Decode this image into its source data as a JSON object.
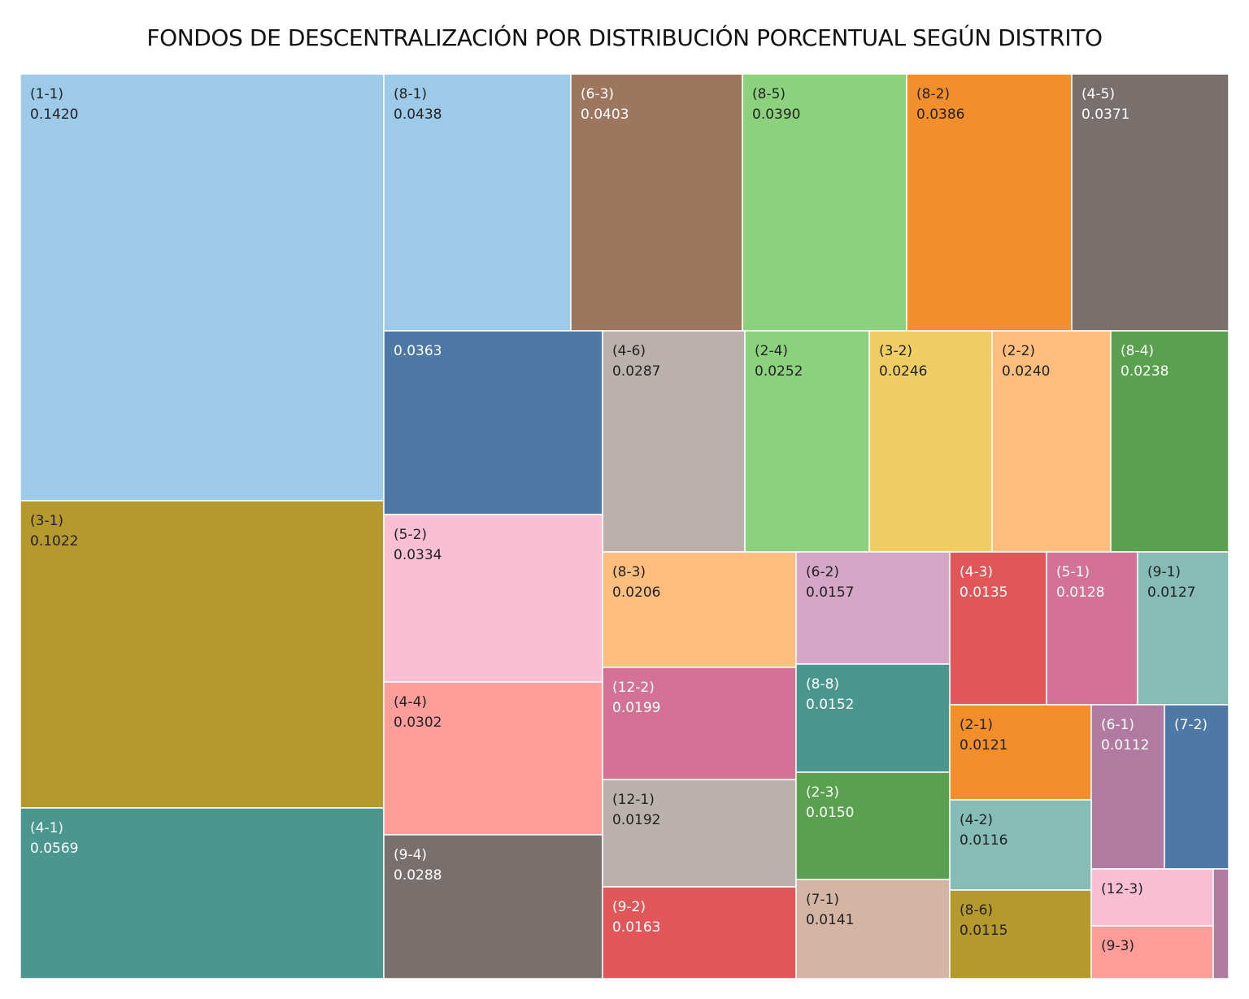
{
  "chart_data": {
    "type": "treemap",
    "title": "FONDOS DE DESCENTRALIZACIÓN POR DISTRIBUCIÓN PORCENTUAL SEGÚN DISTRITO",
    "cells": [
      {
        "name": "(1-1)",
        "value": "0.1420",
        "color": "#9ECAE9",
        "text_color": "#222222"
      },
      {
        "name": "(3-1)",
        "value": "0.1022",
        "color": "#B5992D",
        "text_color": "#222222"
      },
      {
        "name": "(4-1)",
        "value": "0.0569",
        "color": "#4A9790",
        "text_color": "#FFFFFF"
      },
      {
        "name": "(8-1)",
        "value": "0.0438",
        "color": "#9ECAE9",
        "text_color": "#222222"
      },
      {
        "name": "(6-3)",
        "value": "0.0403",
        "color": "#9D7660",
        "text_color": "#FFFFFF"
      },
      {
        "name": "(8-5)",
        "value": "0.0390",
        "color": "#8CD17D",
        "text_color": "#222222"
      },
      {
        "name": "(8-2)",
        "value": "0.0386",
        "color": "#F28E2B",
        "text_color": "#222222"
      },
      {
        "name": "(4-5)",
        "value": "0.0371",
        "color": "#79706E",
        "text_color": "#FFFFFF"
      },
      {
        "name": "",
        "value": "0.0363",
        "color": "#4E79A7",
        "text_color": "#FFFFFF"
      },
      {
        "name": "(4-6)",
        "value": "0.0287",
        "color": "#BAB0AC",
        "text_color": "#222222"
      },
      {
        "name": "(2-4)",
        "value": "0.0252",
        "color": "#8CD17D",
        "text_color": "#222222"
      },
      {
        "name": "(3-2)",
        "value": "0.0246",
        "color": "#F1CE63",
        "text_color": "#222222"
      },
      {
        "name": "(2-2)",
        "value": "0.0240",
        "color": "#FFBE7D",
        "text_color": "#222222"
      },
      {
        "name": "(8-4)",
        "value": "0.0238",
        "color": "#59A14F",
        "text_color": "#FFFFFF"
      },
      {
        "name": "(5-2)",
        "value": "0.0334",
        "color": "#FABFD2",
        "text_color": "#222222"
      },
      {
        "name": "(4-4)",
        "value": "0.0302",
        "color": "#FF9D9A",
        "text_color": "#222222"
      },
      {
        "name": "(9-4)",
        "value": "0.0288",
        "color": "#79706E",
        "text_color": "#FFFFFF"
      },
      {
        "name": "(8-3)",
        "value": "0.0206",
        "color": "#FFBE7D",
        "text_color": "#222222"
      },
      {
        "name": "(6-2)",
        "value": "0.0157",
        "color": "#D4A6C8",
        "text_color": "#222222"
      },
      {
        "name": "(4-3)",
        "value": "0.0135",
        "color": "#E15759",
        "text_color": "#FFFFFF"
      },
      {
        "name": "(5-1)",
        "value": "0.0128",
        "color": "#D37295",
        "text_color": "#FFFFFF"
      },
      {
        "name": "(9-1)",
        "value": "0.0127",
        "color": "#86BCB6",
        "text_color": "#222222"
      },
      {
        "name": "(12-2)",
        "value": "0.0199",
        "color": "#D37295",
        "text_color": "#FFFFFF"
      },
      {
        "name": "(8-8)",
        "value": "0.0152",
        "color": "#4A9790",
        "text_color": "#FFFFFF"
      },
      {
        "name": "(2-1)",
        "value": "0.0121",
        "color": "#F28E2B",
        "text_color": "#222222"
      },
      {
        "name": "(6-1)",
        "value": "0.0112",
        "color": "#B07AA1",
        "text_color": "#FFFFFF"
      },
      {
        "name": "(7-2)",
        "value": "",
        "color": "#4E79A7",
        "text_color": "#FFFFFF"
      },
      {
        "name": "(12-1)",
        "value": "0.0192",
        "color": "#BAB0AC",
        "text_color": "#222222"
      },
      {
        "name": "(2-3)",
        "value": "0.0150",
        "color": "#59A14F",
        "text_color": "#FFFFFF"
      },
      {
        "name": "(4-2)",
        "value": "0.0116",
        "color": "#86BCB6",
        "text_color": "#222222"
      },
      {
        "name": "(9-2)",
        "value": "0.0163",
        "color": "#E15759",
        "text_color": "#FFFFFF"
      },
      {
        "name": "(7-1)",
        "value": "0.0141",
        "color": "#D4B5A5",
        "text_color": "#222222"
      },
      {
        "name": "(8-6)",
        "value": "0.0115",
        "color": "#B5992D",
        "text_color": "#222222"
      },
      {
        "name": "(12-3)",
        "value": "",
        "color": "#FABFD2",
        "text_color": "#222222"
      },
      {
        "name": "(9-3)",
        "value": "",
        "color": "#FF9D9A",
        "text_color": "#222222"
      },
      {
        "name": "",
        "value": "",
        "color": "#B07AA1",
        "text_color": "#FFFFFF"
      }
    ]
  }
}
